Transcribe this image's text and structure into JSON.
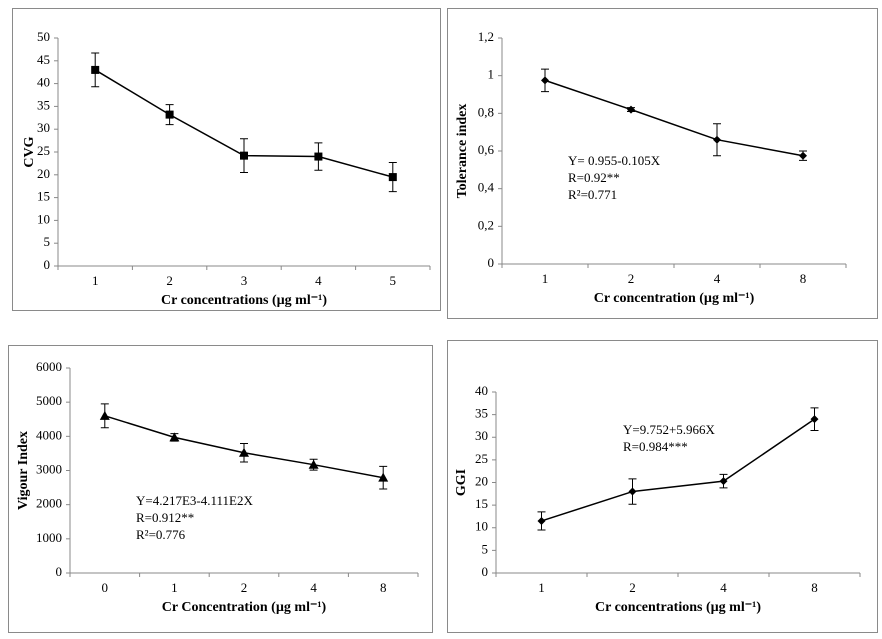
{
  "chart_data": [
    {
      "type": "line",
      "ylabel": "CVG",
      "xlabel": "Cr concentrations (µg ml⁻¹)",
      "categories": [
        "1",
        "2",
        "3",
        "4",
        "5"
      ],
      "values": [
        43,
        33.2,
        24.2,
        24,
        19.5
      ],
      "errors": [
        3.7,
        2.2,
        3.7,
        3,
        3.2
      ],
      "marker": "square",
      "color": "#000000",
      "ylim": [
        0,
        50
      ],
      "yticks": [
        0,
        5,
        10,
        15,
        20,
        25,
        30,
        35,
        40,
        45,
        50
      ]
    },
    {
      "type": "line",
      "ylabel": "Tolerance index",
      "xlabel": "Cr concentration (µg ml⁻¹)",
      "categories": [
        "1",
        "2",
        "4",
        "8"
      ],
      "values": [
        0.975,
        0.82,
        0.66,
        0.575
      ],
      "errors": [
        0.06,
        0.01,
        0.085,
        0.025
      ],
      "marker": "diamond",
      "color": "#000000",
      "ylim": [
        0,
        1.2
      ],
      "yticks": [
        0,
        {
          "value": 0.2,
          "label": "0,2"
        },
        {
          "value": 0.4,
          "label": "0,4"
        },
        {
          "value": 0.6,
          "label": "0,6"
        },
        {
          "value": 0.8,
          "label": "0,8"
        },
        1,
        {
          "value": 1.2,
          "label": "1,2"
        }
      ],
      "annotations": [
        "Y= 0.955-0.105X",
        "R=0.92**",
        "R²=0.771"
      ]
    },
    {
      "type": "line",
      "ylabel": "Vigour Index",
      "xlabel": "Cr Concentration (µg ml⁻¹)",
      "categories": [
        "0",
        "1",
        "2",
        "4",
        "8"
      ],
      "values": [
        4600,
        3970,
        3520,
        3170,
        2790
      ],
      "errors": [
        350,
        110,
        270,
        160,
        330
      ],
      "marker": "triangle",
      "color": "#000000",
      "ylim": [
        0,
        6000
      ],
      "yticks": [
        0,
        1000,
        2000,
        3000,
        4000,
        5000,
        6000
      ],
      "annotations": [
        "Y=4.217E3-4.111E2X",
        "R=0.912**",
        "R²=0.776"
      ]
    },
    {
      "type": "line",
      "ylabel": "GGI",
      "xlabel": "Cr concentrations (µg ml⁻¹)",
      "categories": [
        "1",
        "2",
        "4",
        "8"
      ],
      "values": [
        11.5,
        18,
        20.3,
        34
      ],
      "errors": [
        2,
        2.8,
        1.5,
        2.5
      ],
      "marker": "diamond",
      "color": "#000000",
      "ylim": [
        0,
        40
      ],
      "yticks": [
        0,
        5,
        10,
        15,
        20,
        25,
        30,
        35,
        40
      ],
      "annotations": [
        "Y=9.752+5.966X",
        "R=0.984***"
      ]
    }
  ]
}
